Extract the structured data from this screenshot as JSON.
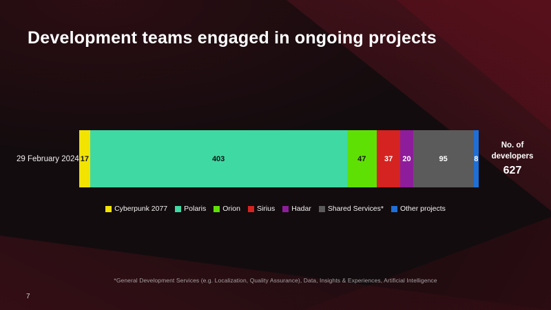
{
  "slide": {
    "title": "Development teams engaged in ongoing projects",
    "page_number": "7",
    "footnote": "*General Development Services (e.g. Localization, Quality Assurance), Data, Insights & Experiences, Artificial Intelligence"
  },
  "chart_data": {
    "type": "bar",
    "variant": "horizontal-stacked",
    "row_label": "29 February 2024",
    "total_label": "No. of developers",
    "total_value": "627",
    "legend_position": "bottom",
    "segments": [
      {
        "name": "Cyberpunk 2077",
        "value": 17,
        "color": "#f2e400",
        "text_color": "#141414"
      },
      {
        "name": "Polaris",
        "value": 403,
        "color": "#3fd9a4",
        "text_color": "#141414"
      },
      {
        "name": "Orion",
        "value": 47,
        "color": "#5fe005",
        "text_color": "#141414"
      },
      {
        "name": "Sirius",
        "value": 37,
        "color": "#d52321",
        "text_color": "#ffffff"
      },
      {
        "name": "Hadar",
        "value": 20,
        "color": "#8e1d9b",
        "text_color": "#ffffff"
      },
      {
        "name": "Shared Services*",
        "value": 95,
        "color": "#5b5b5b",
        "text_color": "#ffffff"
      },
      {
        "name": "Other projects",
        "value": 8,
        "color": "#1f6fd6",
        "text_color": "#ffffff"
      }
    ]
  }
}
